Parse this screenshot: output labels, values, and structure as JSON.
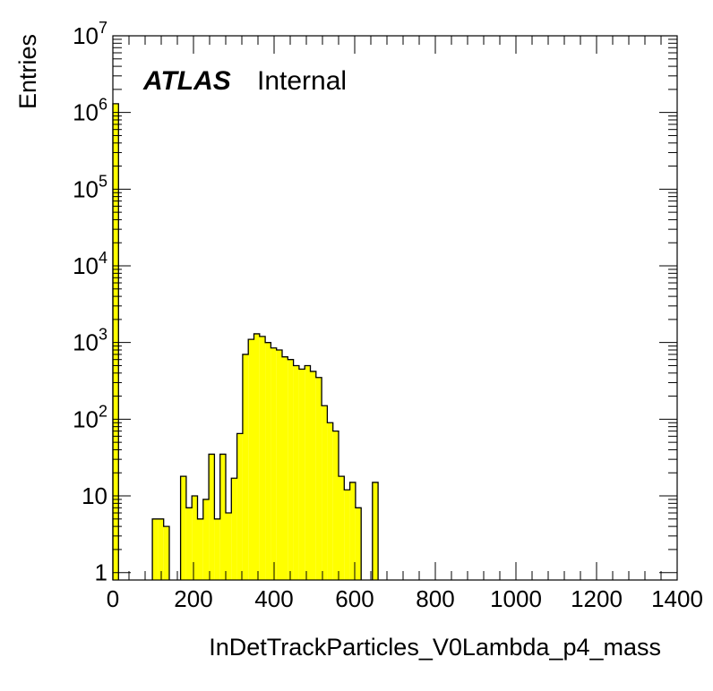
{
  "chart_data": {
    "type": "bar",
    "style": "histogram",
    "xlabel": "InDetTrackParticles_V0Lambda_p4_mass",
    "ylabel": "Entries",
    "xlim": [
      0,
      1400
    ],
    "ylim": [
      0.8,
      10000000
    ],
    "log_y": true,
    "bin_width": 14,
    "grid": false,
    "fill_color": "#ffff00",
    "line_color": "#000000",
    "labels": {
      "experiment": "ATLAS",
      "status": "Internal"
    },
    "x_ticks": [
      0,
      200,
      400,
      600,
      800,
      1000,
      1200,
      1400
    ],
    "y_ticks": [
      {
        "value": 1,
        "label": "1"
      },
      {
        "value": 10,
        "label": "10"
      },
      {
        "value": 100,
        "label": "10",
        "exp": "2"
      },
      {
        "value": 1000,
        "label": "10",
        "exp": "3"
      },
      {
        "value": 10000,
        "label": "10",
        "exp": "4"
      },
      {
        "value": 100000,
        "label": "10",
        "exp": "5"
      },
      {
        "value": 1000000,
        "label": "10",
        "exp": "6"
      },
      {
        "value": 10000000,
        "label": "10",
        "exp": "7"
      }
    ],
    "bins": [
      [
        0,
        1300000
      ],
      [
        98,
        5
      ],
      [
        112,
        5
      ],
      [
        126,
        4
      ],
      [
        168,
        18
      ],
      [
        182,
        7
      ],
      [
        196,
        10
      ],
      [
        210,
        5
      ],
      [
        224,
        9
      ],
      [
        238,
        35
      ],
      [
        252,
        5
      ],
      [
        266,
        35
      ],
      [
        280,
        6
      ],
      [
        294,
        17
      ],
      [
        308,
        65
      ],
      [
        322,
        700
      ],
      [
        336,
        1100
      ],
      [
        350,
        1300
      ],
      [
        364,
        1200
      ],
      [
        378,
        1000
      ],
      [
        392,
        850
      ],
      [
        406,
        800
      ],
      [
        420,
        650
      ],
      [
        434,
        600
      ],
      [
        448,
        500
      ],
      [
        462,
        450
      ],
      [
        476,
        500
      ],
      [
        490,
        420
      ],
      [
        504,
        350
      ],
      [
        518,
        150
      ],
      [
        532,
        90
      ],
      [
        546,
        70
      ],
      [
        560,
        18
      ],
      [
        574,
        12
      ],
      [
        588,
        15
      ],
      [
        602,
        7
      ],
      [
        644,
        15
      ]
    ]
  }
}
